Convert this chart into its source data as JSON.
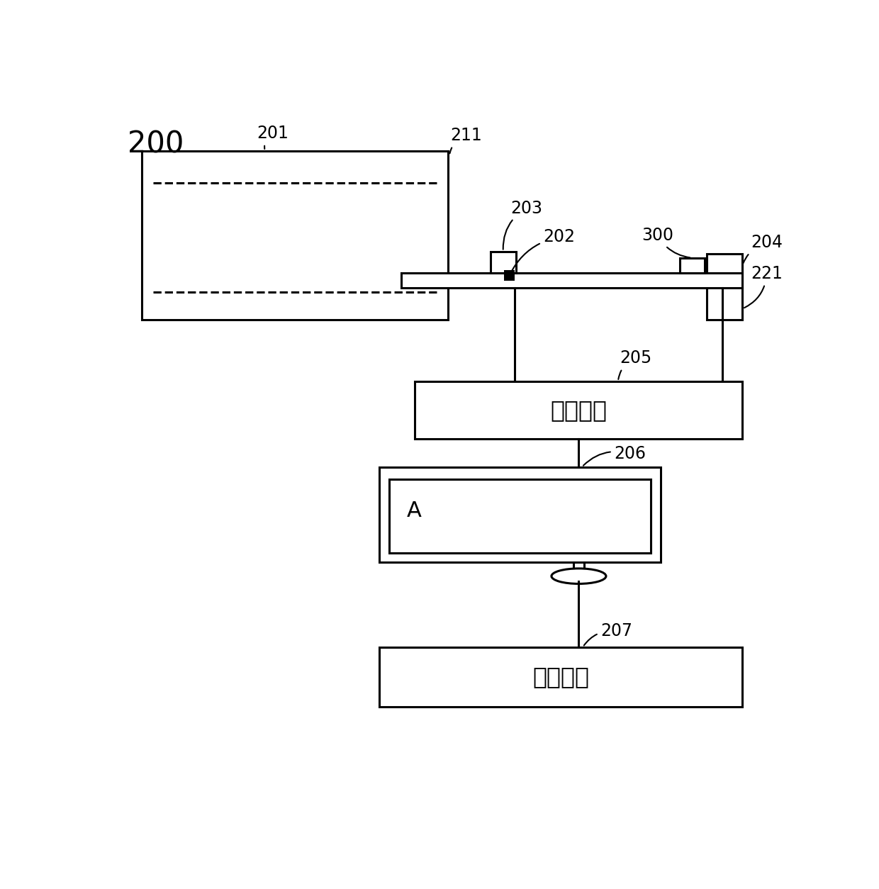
{
  "bg_color": "#ffffff",
  "line_color": "#000000",
  "label_200": "200",
  "label_201": "201",
  "label_211": "211",
  "label_202": "202",
  "label_203": "203",
  "label_204": "204",
  "label_221": "221",
  "label_300": "300",
  "label_205": "205",
  "label_206": "206",
  "label_207": "207",
  "text_main_control": "主控装置",
  "text_select": "选择装置",
  "text_A": "A",
  "figsize": [
    12.4,
    12.54
  ],
  "dpi": 100
}
